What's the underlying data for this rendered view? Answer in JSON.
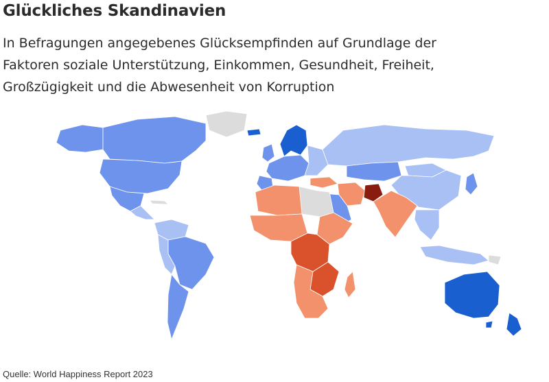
{
  "title": "Glückliches Skandinavien",
  "subtitle": "In Befragungen angegebenes Glücksempfinden auf Grundlage der Faktoren soziale Unterstützung, Einkommen, Gesundheit, Freiheit, Großzügigkeit und die Abwesenheit von Korruption",
  "source": "Quelle: World Happiness Report 2023",
  "colors": {
    "no_data": "#dcdcdc",
    "very_high": "#1a5fd0",
    "high": "#6e93ec",
    "medium_high": "#a9c0f5",
    "medium_low": "#f2916b",
    "low": "#d9522c",
    "very_low": "#8a1c0f"
  }
}
